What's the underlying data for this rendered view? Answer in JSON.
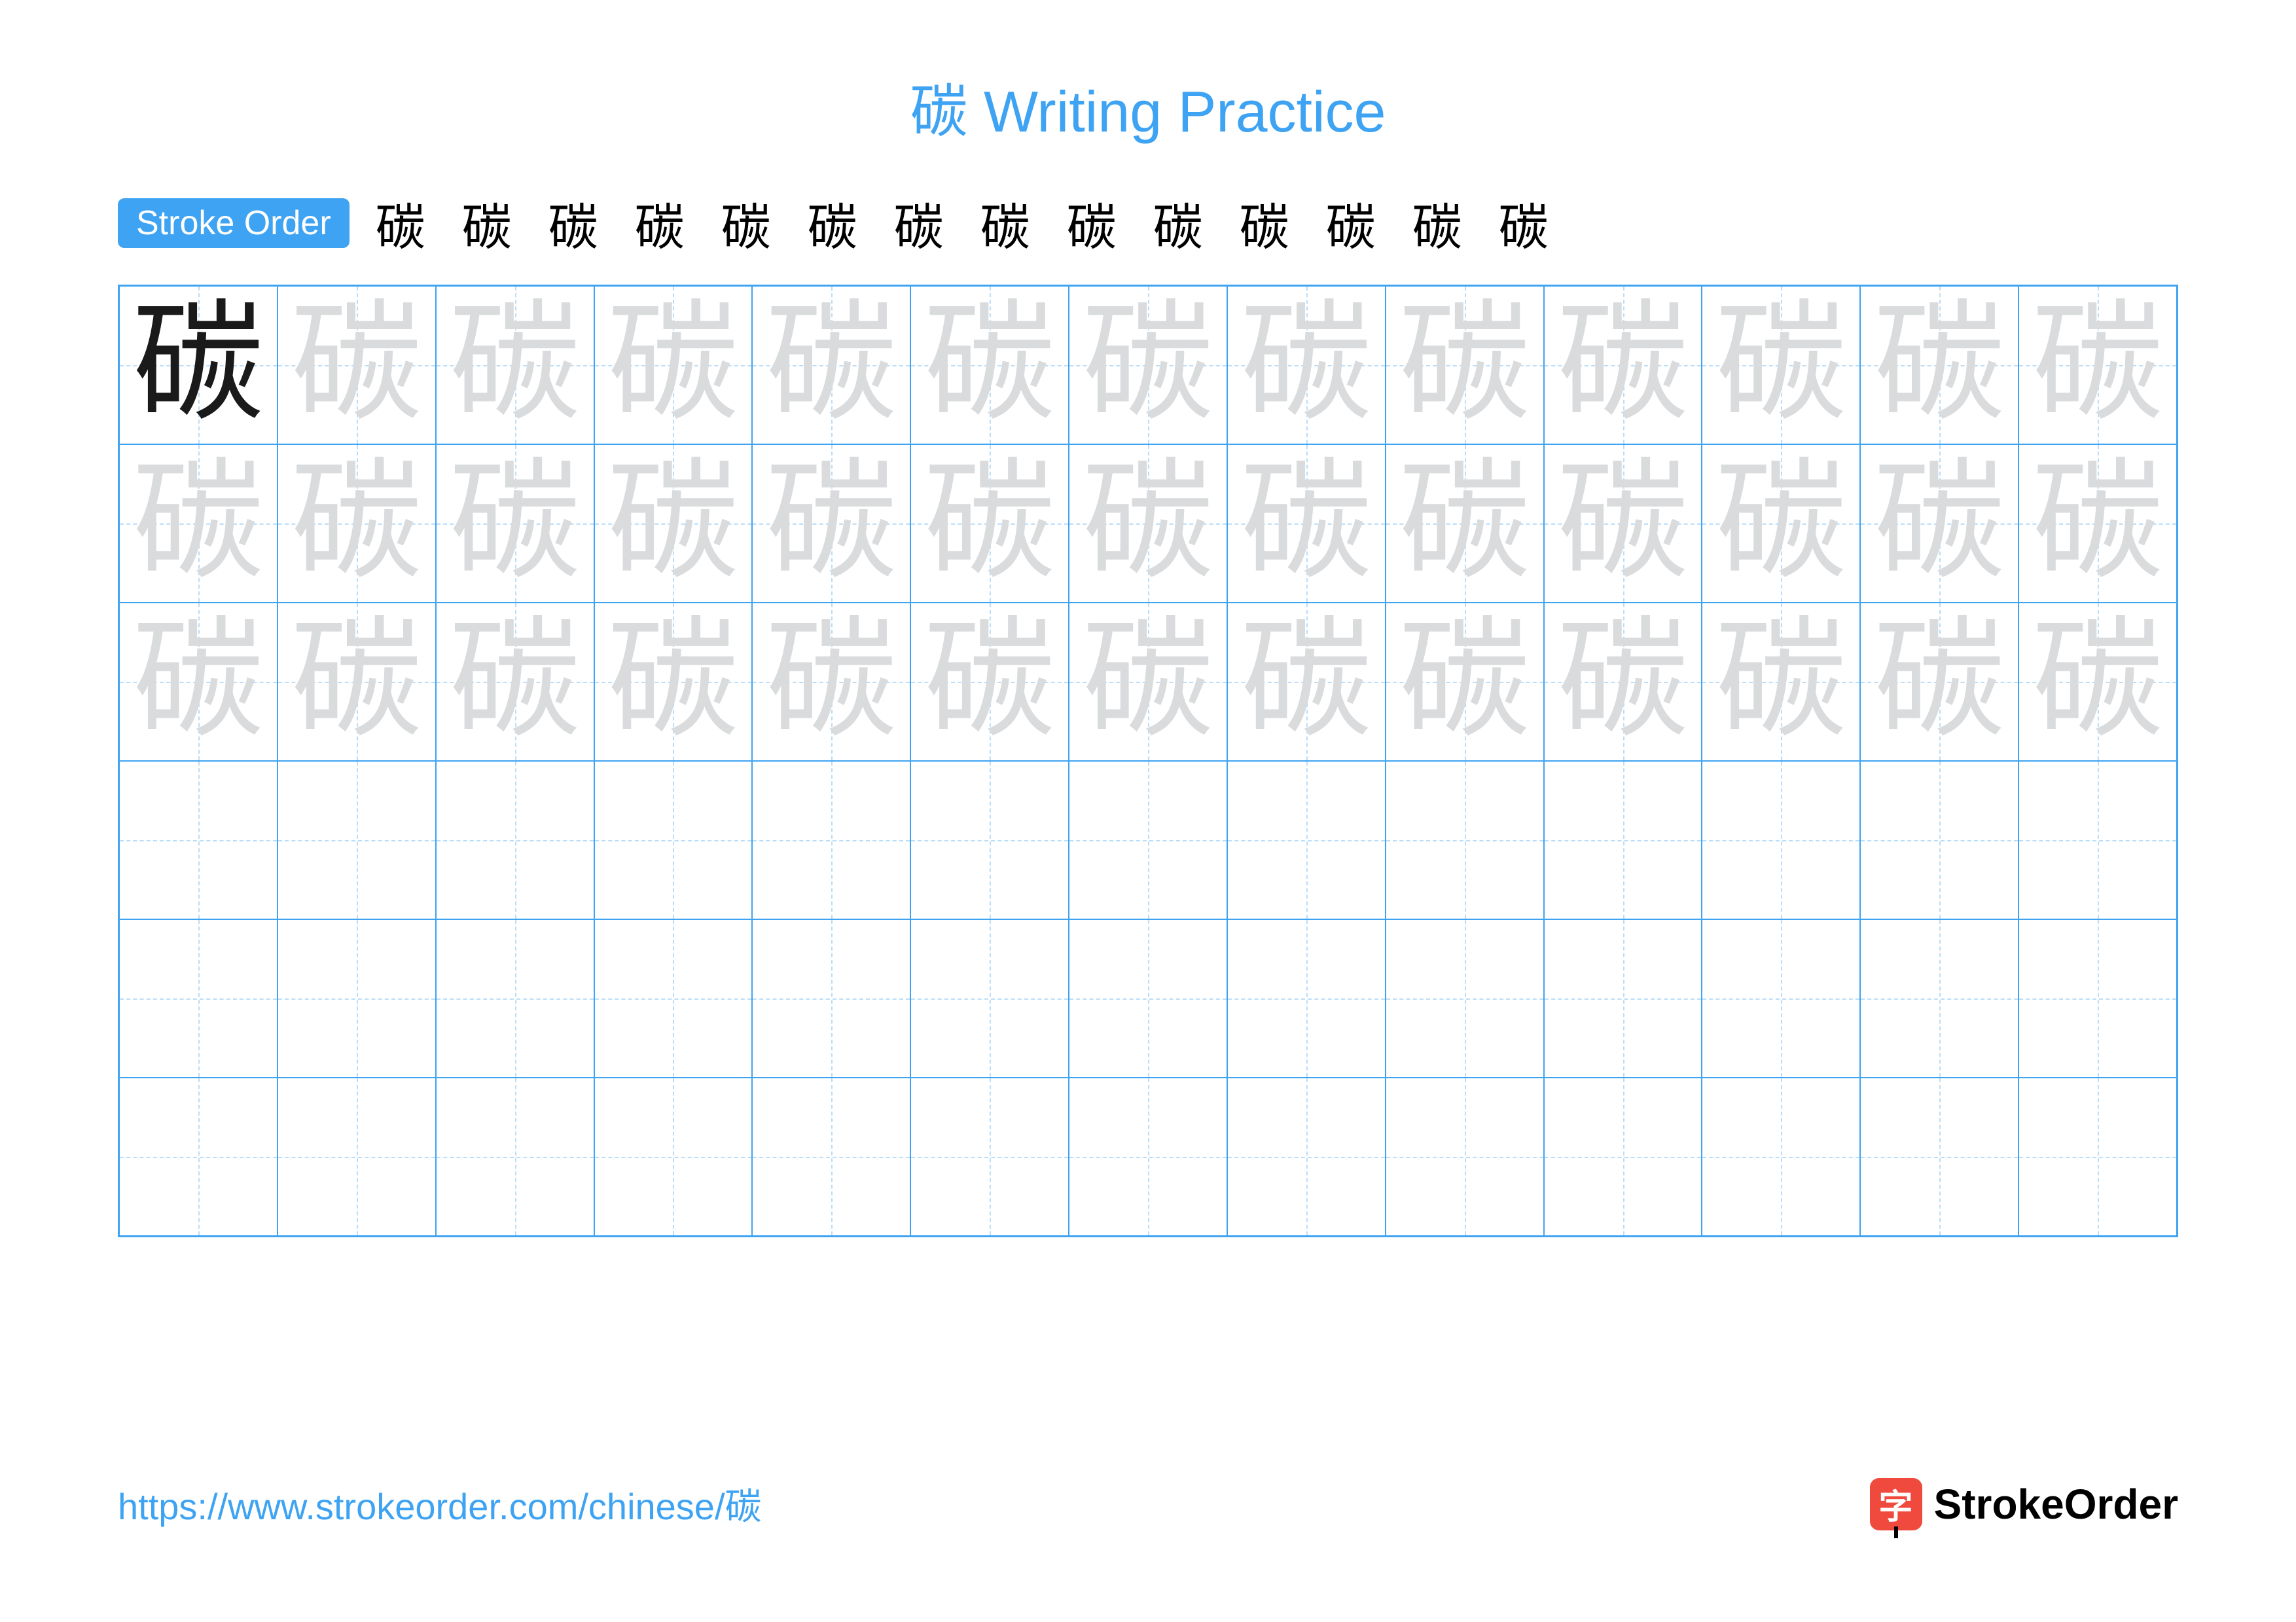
{
  "title": "碳 Writing Practice",
  "character": "碳",
  "colors": {
    "accent": "#3ea3f2",
    "grid_line": "#3ea3f2",
    "guide_line": "#9ecff7",
    "ghost_char": "#d9dbdd",
    "solid_char": "#1a1a1a",
    "badge_bg": "#3ea3f2",
    "brand_bg": "#f04a3e"
  },
  "stroke_order": {
    "label": "Stroke Order",
    "count": 14
  },
  "grid": {
    "rows": 6,
    "cols": 13,
    "trace_rows": 3,
    "solid_cells": 1
  },
  "footer": {
    "url": "https://www.strokeorder.com/chinese/碳",
    "brand_icon": "字",
    "brand_name": "StrokeOrder"
  }
}
